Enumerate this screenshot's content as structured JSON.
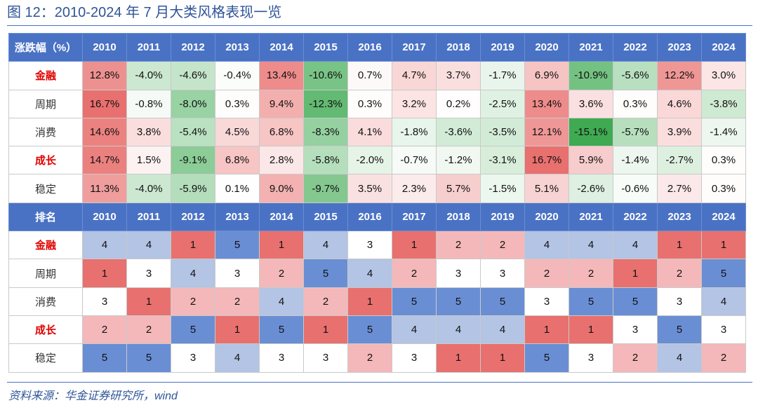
{
  "title": "图 12：2010-2024 年 7 月大类风格表现一览",
  "source": "资料来源：华金证券研究所，wind",
  "years": [
    "2010",
    "2011",
    "2012",
    "2013",
    "2014",
    "2015",
    "2016",
    "2017",
    "2018",
    "2019",
    "2020",
    "2021",
    "2022",
    "2023",
    "2024"
  ],
  "returns_header": "涨跌幅（%）",
  "rank_header": "排名",
  "colors": {
    "header_bg": "#4a72c4",
    "highlight_label": "#e00000",
    "rank_1": "#e8706e",
    "rank_2": "#f4b8ba",
    "rank_3": "#ffffff",
    "rank_4": "#b3c4e4",
    "rank_5": "#6a8ed4"
  },
  "returns": [
    {
      "label": "金融",
      "highlight": true,
      "values": [
        "12.8%",
        "-4.0%",
        "-4.6%",
        "-0.4%",
        "13.4%",
        "-10.6%",
        "0.7%",
        "4.7%",
        "3.7%",
        "-1.7%",
        "6.9%",
        "-10.9%",
        "-5.6%",
        "12.2%",
        "3.0%"
      ],
      "nums": [
        12.8,
        -4.0,
        -4.6,
        -0.4,
        13.4,
        -10.6,
        0.7,
        4.7,
        3.7,
        -1.7,
        6.9,
        -10.9,
        -5.6,
        12.2,
        3.0
      ]
    },
    {
      "label": "周期",
      "highlight": false,
      "values": [
        "16.7%",
        "-0.8%",
        "-8.0%",
        "0.3%",
        "9.4%",
        "-12.3%",
        "0.3%",
        "3.2%",
        "0.2%",
        "-2.5%",
        "13.4%",
        "3.6%",
        "0.3%",
        "4.6%",
        "-3.8%"
      ],
      "nums": [
        16.7,
        -0.8,
        -8.0,
        0.3,
        9.4,
        -12.3,
        0.3,
        3.2,
        0.2,
        -2.5,
        13.4,
        3.6,
        0.3,
        4.6,
        -3.8
      ]
    },
    {
      "label": "消费",
      "highlight": false,
      "values": [
        "14.6%",
        "3.8%",
        "-5.4%",
        "4.5%",
        "6.8%",
        "-8.3%",
        "4.1%",
        "-1.8%",
        "-3.6%",
        "-3.5%",
        "12.1%",
        "-15.1%",
        "-5.7%",
        "3.9%",
        "-1.4%"
      ],
      "nums": [
        14.6,
        3.8,
        -5.4,
        4.5,
        6.8,
        -8.3,
        4.1,
        -1.8,
        -3.6,
        -3.5,
        12.1,
        -15.1,
        -5.7,
        3.9,
        -1.4
      ]
    },
    {
      "label": "成长",
      "highlight": true,
      "values": [
        "14.7%",
        "1.5%",
        "-9.1%",
        "6.8%",
        "2.8%",
        "-5.8%",
        "-2.0%",
        "-0.7%",
        "-1.2%",
        "-3.1%",
        "16.7%",
        "5.9%",
        "-1.4%",
        "-2.7%",
        "0.3%"
      ],
      "nums": [
        14.7,
        1.5,
        -9.1,
        6.8,
        2.8,
        -5.8,
        -2.0,
        -0.7,
        -1.2,
        -3.1,
        16.7,
        5.9,
        -1.4,
        -2.7,
        0.3
      ]
    },
    {
      "label": "稳定",
      "highlight": false,
      "values": [
        "11.3%",
        "-4.0%",
        "-5.9%",
        "0.1%",
        "9.0%",
        "-9.7%",
        "3.5%",
        "2.3%",
        "5.7%",
        "-1.5%",
        "5.1%",
        "-2.6%",
        "-0.6%",
        "2.7%",
        "0.3%"
      ],
      "nums": [
        11.3,
        -4.0,
        -5.9,
        0.1,
        9.0,
        -9.7,
        3.5,
        2.3,
        5.7,
        -1.5,
        5.1,
        -2.6,
        -0.6,
        2.7,
        0.3
      ]
    }
  ],
  "ranks": [
    {
      "label": "金融",
      "highlight": true,
      "values": [
        "4",
        "4",
        "1",
        "5",
        "1",
        "4",
        "3",
        "1",
        "2",
        "2",
        "4",
        "4",
        "4",
        "1",
        "1"
      ]
    },
    {
      "label": "周期",
      "highlight": false,
      "values": [
        "1",
        "3",
        "4",
        "3",
        "2",
        "5",
        "4",
        "2",
        "3",
        "3",
        "2",
        "2",
        "1",
        "2",
        "5"
      ]
    },
    {
      "label": "消费",
      "highlight": false,
      "values": [
        "3",
        "1",
        "2",
        "2",
        "4",
        "2",
        "1",
        "5",
        "5",
        "5",
        "3",
        "5",
        "5",
        "3",
        "4"
      ]
    },
    {
      "label": "成长",
      "highlight": true,
      "values": [
        "2",
        "2",
        "5",
        "1",
        "5",
        "1",
        "5",
        "4",
        "4",
        "4",
        "1",
        "1",
        "3",
        "5",
        "3"
      ]
    },
    {
      "label": "稳定",
      "highlight": false,
      "values": [
        "5",
        "5",
        "3",
        "4",
        "3",
        "3",
        "2",
        "3",
        "1",
        "1",
        "5",
        "3",
        "2",
        "4",
        "2"
      ]
    }
  ]
}
